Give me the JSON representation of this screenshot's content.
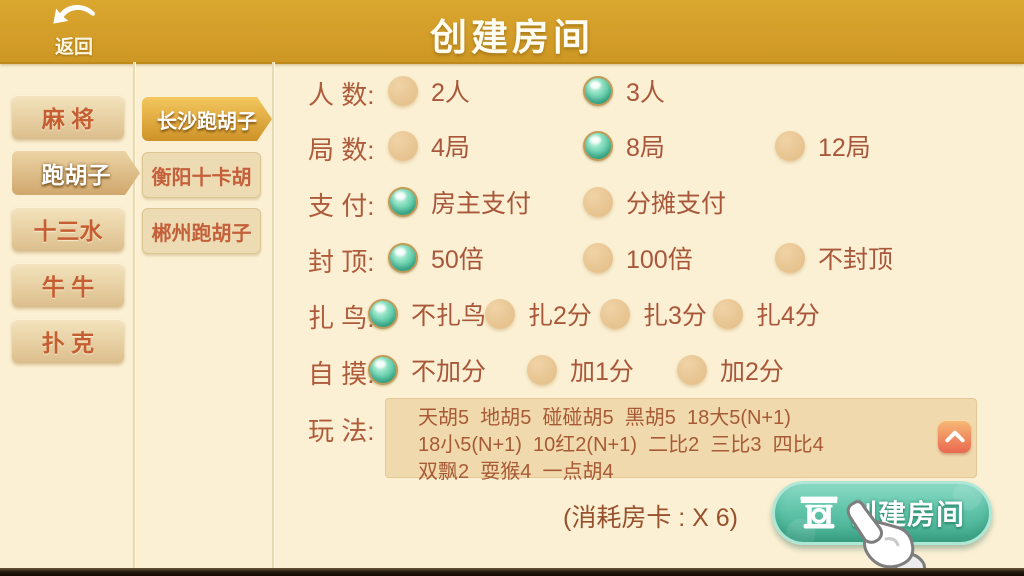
{
  "header": {
    "back_label": "返回",
    "title": "创建房间"
  },
  "categories": [
    {
      "label": "麻 将",
      "selected": false
    },
    {
      "label": "跑胡子",
      "selected": true
    },
    {
      "label": "十三水",
      "selected": false
    },
    {
      "label": "牛 牛",
      "selected": false
    },
    {
      "label": "扑 克",
      "selected": false
    }
  ],
  "subcategories": [
    {
      "label": "长沙跑胡子",
      "selected": true
    },
    {
      "label": "衡阳十卡胡",
      "selected": false
    },
    {
      "label": "郴州跑胡子",
      "selected": false
    }
  ],
  "settings_rows": [
    {
      "label": "人 数:",
      "options": [
        {
          "label": "2人",
          "selected": false
        },
        {
          "label": "3人",
          "selected": true
        }
      ]
    },
    {
      "label": "局 数:",
      "options": [
        {
          "label": "4局",
          "selected": false
        },
        {
          "label": "8局",
          "selected": true
        },
        {
          "label": "12局",
          "selected": false
        }
      ]
    },
    {
      "label": "支 付:",
      "options": [
        {
          "label": "房主支付",
          "selected": true
        },
        {
          "label": "分摊支付",
          "selected": false
        }
      ]
    },
    {
      "label": "封 顶:",
      "options": [
        {
          "label": "50倍",
          "selected": true
        },
        {
          "label": "100倍",
          "selected": false
        },
        {
          "label": "不封顶",
          "selected": false
        }
      ]
    },
    {
      "label": "扎 鸟:",
      "options": [
        {
          "label": "不扎鸟",
          "selected": true
        },
        {
          "label": "扎2分",
          "selected": false
        },
        {
          "label": "扎3分",
          "selected": false
        },
        {
          "label": "扎4分",
          "selected": false
        }
      ]
    },
    {
      "label": "自 摸:",
      "options": [
        {
          "label": "不加分",
          "selected": true
        },
        {
          "label": "加1分",
          "selected": false
        },
        {
          "label": "加2分",
          "selected": false
        }
      ]
    }
  ],
  "wanfa": {
    "label": "玩 法:",
    "lines": [
      "天胡5  地胡5  碰碰胡5  黑胡5  18大5(N+1)",
      "18小5(N+1)  10红2(N+1)  二比2  三比3  四比4",
      "双飘2  耍猴4  一点胡4"
    ]
  },
  "footer": {
    "cost_text": "(消耗房卡 : X 6)",
    "create_button_label": "创建房间"
  },
  "icons": {
    "back_icon": "curved-back-arrow",
    "room_card_icon": "white-gate-pavilion",
    "collapse_icon": "chevron-up",
    "cursor_icon": "white-glove-hand-pointer"
  },
  "colors": {
    "topbar_gold": "#D49D2B",
    "background_cream": "#FBF0D3",
    "selected_radio_teal": "#49BD9A",
    "unselected_radio_tan": "#E6C28E",
    "text_brown": "#AE5B3B",
    "tab_text_orange": "#C55E31",
    "subtab_selected_gold": "#E0A93F",
    "create_button_teal": "#5EC3A8",
    "collapse_button_coral": "#ED7A58",
    "bottom_edge_dark": "#241A0E"
  }
}
